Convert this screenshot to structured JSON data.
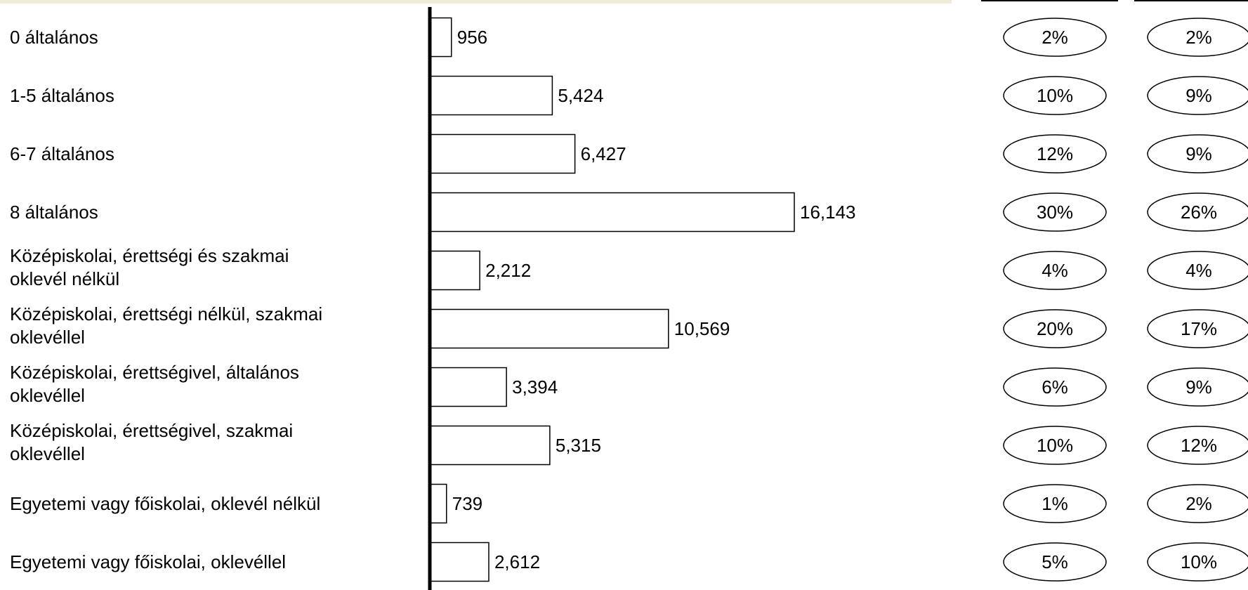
{
  "chart_data": {
    "type": "bar",
    "orientation": "horizontal",
    "categories": [
      [
        "0 általános"
      ],
      [
        "1-5 általános"
      ],
      [
        "6-7 általános"
      ],
      [
        "8 általános"
      ],
      [
        "Középiskolai, érettségi és szakmai",
        "oklevél nélkül"
      ],
      [
        "Középiskolai, érettségi nélkül, szakmai",
        "oklevéllel"
      ],
      [
        "Középiskolai, érettségivel, általános",
        "oklevéllel"
      ],
      [
        "Középiskolai, érettségivel, szakmai",
        "oklevéllel"
      ],
      [
        "Egyetemi vagy főiskolai, oklevél nélkül"
      ],
      [
        "Egyetemi vagy főiskolai, oklevéllel"
      ]
    ],
    "values": [
      956,
      5424,
      6427,
      16143,
      2212,
      10569,
      3394,
      5315,
      739,
      2612
    ],
    "value_labels": [
      "956",
      "5,424",
      "6,427",
      "16,143",
      "2,212",
      "10,569",
      "3,394",
      "5,315",
      "739",
      "2,612"
    ],
    "percent_columns": [
      [
        "2%",
        "10%",
        "12%",
        "30%",
        "4%",
        "20%",
        "6%",
        "10%",
        "1%",
        "5%"
      ],
      [
        "2%",
        "9%",
        "9%",
        "26%",
        "4%",
        "17%",
        "9%",
        "12%",
        "2%",
        "10%"
      ]
    ],
    "xlim": [
      0,
      20000
    ],
    "title": "",
    "xlabel": "",
    "ylabel": "",
    "grid": false,
    "legend": "none",
    "colors": {
      "bar_fill": "#ffffff",
      "bar_stroke": "#000000",
      "axis": "#000000",
      "top_band": "#efedd8"
    }
  }
}
